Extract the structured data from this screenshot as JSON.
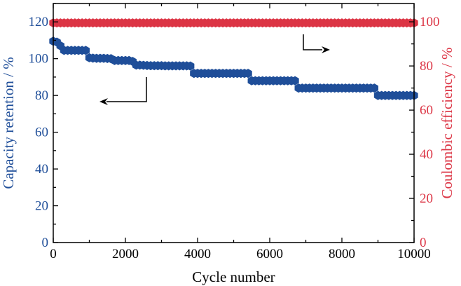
{
  "colors": {
    "left_series": "#1f4e99",
    "right_series": "#dc3545",
    "axis": "#000000"
  },
  "chart_data": {
    "type": "scatter",
    "title": "",
    "xlabel": "Cycle number",
    "ylabel_left": "Capacity retention / %",
    "ylabel_right": "Coulombic efficiency / %",
    "xlim": [
      0,
      10000
    ],
    "ylim_left": [
      0,
      130
    ],
    "ylim_right": [
      0,
      108.3
    ],
    "x_ticks": [
      0,
      2000,
      4000,
      6000,
      8000,
      10000
    ],
    "y_ticks_left": [
      0,
      20,
      40,
      60,
      80,
      100,
      120
    ],
    "y_ticks_right": [
      0,
      20,
      40,
      60,
      80,
      100
    ],
    "grid": false,
    "series": [
      {
        "axis": "left",
        "marker": "hexagon",
        "x": [
          0,
          100,
          200,
          300,
          400,
          500,
          600,
          700,
          800,
          900,
          1000,
          1100,
          1200,
          1300,
          1400,
          1500,
          1600,
          1700,
          1800,
          1900,
          2000,
          2100,
          2200,
          2300,
          2400,
          2500,
          2600,
          2700,
          2800,
          2900,
          3000,
          3100,
          3200,
          3300,
          3400,
          3500,
          3600,
          3700,
          3800,
          3900,
          4000,
          4100,
          4200,
          4300,
          4400,
          4500,
          4600,
          4700,
          4800,
          4900,
          5000,
          5100,
          5200,
          5300,
          5400,
          5500,
          5600,
          5700,
          5800,
          5900,
          6000,
          6100,
          6200,
          6300,
          6400,
          6500,
          6600,
          6700,
          6800,
          6900,
          7000,
          7100,
          7200,
          7300,
          7400,
          7500,
          7600,
          7700,
          7800,
          7900,
          8000,
          8100,
          8200,
          8300,
          8400,
          8500,
          8600,
          8700,
          8800,
          8900,
          9000,
          9100,
          9200,
          9300,
          9400,
          9500,
          9600,
          9700,
          9800,
          9900,
          10000
        ],
        "y": [
          109.5,
          109,
          107,
          104.5,
          104.5,
          104.5,
          104.5,
          104.5,
          104.5,
          104.5,
          100.5,
          100.3,
          100.2,
          100.2,
          100.2,
          100.1,
          100,
          99,
          99,
          99,
          99,
          99,
          98.5,
          96.5,
          96.5,
          96.4,
          96.3,
          96.2,
          96.2,
          96.2,
          96.2,
          96.1,
          96.1,
          96.1,
          96.1,
          96.1,
          96.1,
          96.1,
          96,
          92,
          92,
          92,
          92,
          92,
          92,
          92,
          92,
          92,
          92,
          92,
          92,
          92,
          92,
          92,
          92,
          88,
          88,
          88,
          88,
          88,
          88,
          88,
          88,
          88,
          88,
          88,
          88,
          88,
          84,
          84,
          84,
          84,
          84,
          84,
          84,
          84,
          84,
          84,
          84,
          84,
          84,
          84,
          84,
          84,
          84,
          84,
          84,
          84,
          84,
          84,
          80,
          80,
          80,
          80,
          80,
          80,
          80,
          80,
          80,
          80,
          80
        ]
      },
      {
        "axis": "right",
        "marker": "hexagon",
        "x": [
          0,
          100,
          200,
          300,
          400,
          500,
          600,
          700,
          800,
          900,
          1000,
          1100,
          1200,
          1300,
          1400,
          1500,
          1600,
          1700,
          1800,
          1900,
          2000,
          2100,
          2200,
          2300,
          2400,
          2500,
          2600,
          2700,
          2800,
          2900,
          3000,
          3100,
          3200,
          3300,
          3400,
          3500,
          3600,
          3700,
          3800,
          3900,
          4000,
          4100,
          4200,
          4300,
          4400,
          4500,
          4600,
          4700,
          4800,
          4900,
          5000,
          5100,
          5200,
          5300,
          5400,
          5500,
          5600,
          5700,
          5800,
          5900,
          6000,
          6100,
          6200,
          6300,
          6400,
          6500,
          6600,
          6700,
          6800,
          6900,
          7000,
          7100,
          7200,
          7300,
          7400,
          7500,
          7600,
          7700,
          7800,
          7900,
          8000,
          8100,
          8200,
          8300,
          8400,
          8500,
          8600,
          8700,
          8800,
          8900,
          9000,
          9100,
          9200,
          9300,
          9400,
          9500,
          9600,
          9700,
          9800,
          9900,
          10000
        ],
        "y": [
          99.5,
          99.5,
          99.5,
          99.5,
          99.5,
          99.5,
          99.5,
          99.5,
          99.5,
          99.5,
          99.5,
          99.5,
          99.5,
          99.5,
          99.5,
          99.5,
          99.5,
          99.5,
          99.5,
          99.5,
          99.5,
          99.5,
          99.5,
          99.5,
          99.5,
          99.5,
          99.5,
          99.5,
          99.5,
          99.5,
          99.5,
          99.5,
          99.5,
          99.5,
          99.5,
          99.5,
          99.5,
          99.5,
          99.5,
          99.5,
          99.5,
          99.5,
          99.5,
          99.5,
          99.5,
          99.5,
          99.5,
          99.5,
          99.5,
          99.5,
          99.5,
          99.5,
          99.5,
          99.5,
          99.5,
          99.5,
          99.5,
          99.5,
          99.5,
          99.5,
          99.5,
          99.5,
          99.5,
          99.5,
          99.5,
          99.5,
          99.5,
          99.5,
          99.5,
          99.5,
          99.5,
          99.5,
          99.5,
          99.5,
          99.5,
          99.5,
          99.5,
          99.5,
          99.5,
          99.5,
          99.5,
          99.5,
          99.5,
          99.5,
          99.5,
          99.5,
          99.5,
          99.5,
          99.5,
          99.5,
          99.5,
          99.5,
          99.5,
          99.5,
          99.5,
          99.5,
          99.5,
          99.5,
          99.5,
          99.5,
          99.5
        ]
      }
    ],
    "annotations": [
      {
        "type": "arrow",
        "points_to": "left",
        "indicates_axis": "left"
      },
      {
        "type": "arrow",
        "points_to": "right",
        "indicates_axis": "right"
      }
    ]
  }
}
